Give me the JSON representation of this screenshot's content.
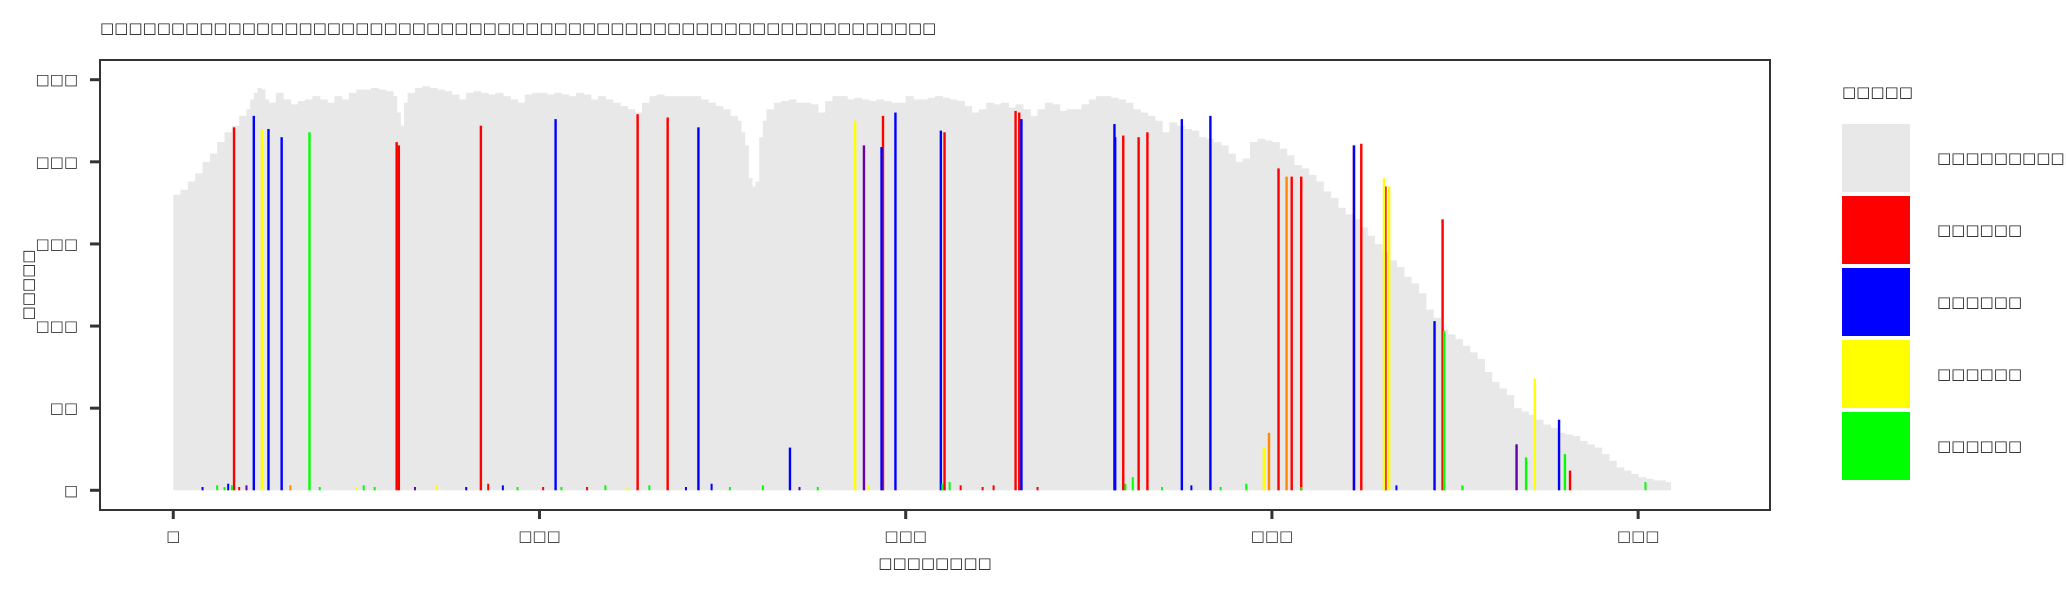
{
  "chart_data": {
    "type": "bar",
    "title": "□□□□□□□□□□□□□□□□□□□□□□□□□□□□□□□□□□□□□□□□□□□□□□□□□□□□□□□□□□□",
    "xlabel": "□□□□□□□□",
    "ylabel": "□□□□□",
    "x_ticks": [
      {
        "value": 0,
        "label": "□"
      },
      {
        "value": 500,
        "label": "□□□"
      },
      {
        "value": 1000,
        "label": "□□□"
      },
      {
        "value": 1500,
        "label": "□□□"
      },
      {
        "value": 2000,
        "label": "□□□"
      }
    ],
    "y_ticks": [
      {
        "value": 0,
        "label": "□"
      },
      {
        "value": 50,
        "label": "□□"
      },
      {
        "value": 100,
        "label": "□□□"
      },
      {
        "value": 150,
        "label": "□□□"
      },
      {
        "value": 200,
        "label": "□□□"
      },
      {
        "value": 250,
        "label": "□□□"
      }
    ],
    "xlim": [
      -100,
      2180
    ],
    "ylim": [
      -12,
      262
    ],
    "grid": false,
    "legend_title": "□□□□□",
    "legend_position": "right",
    "legend": [
      {
        "label": "□□□□□□□□□□",
        "color": "#e8e8e8"
      },
      {
        "label": "□□□□□□",
        "color": "#ff0000"
      },
      {
        "label": "□□□□□□",
        "color": "#0000ff"
      },
      {
        "label": "□□□□□□",
        "color": "#ffff00"
      },
      {
        "label": "□□□□□□",
        "color": "#00ff00"
      }
    ],
    "background_series": {
      "color": "#e8e8e8",
      "points": [
        [
          0,
          180
        ],
        [
          10,
          183
        ],
        [
          20,
          188
        ],
        [
          30,
          193
        ],
        [
          40,
          200
        ],
        [
          50,
          205
        ],
        [
          60,
          212
        ],
        [
          70,
          218
        ],
        [
          80,
          222
        ],
        [
          90,
          228
        ],
        [
          100,
          232
        ],
        [
          105,
          238
        ],
        [
          110,
          242
        ],
        [
          115,
          245
        ],
        [
          120,
          244
        ],
        [
          125,
          238
        ],
        [
          130,
          236
        ],
        [
          140,
          242
        ],
        [
          150,
          238
        ],
        [
          160,
          235
        ],
        [
          170,
          237
        ],
        [
          180,
          238
        ],
        [
          190,
          240
        ],
        [
          200,
          238
        ],
        [
          210,
          236
        ],
        [
          220,
          240
        ],
        [
          230,
          238
        ],
        [
          240,
          242
        ],
        [
          250,
          244
        ],
        [
          260,
          244
        ],
        [
          270,
          245
        ],
        [
          280,
          244
        ],
        [
          290,
          243
        ],
        [
          300,
          240
        ],
        [
          305,
          230
        ],
        [
          310,
          222
        ],
        [
          315,
          236
        ],
        [
          320,
          242
        ],
        [
          330,
          245
        ],
        [
          340,
          246
        ],
        [
          350,
          245
        ],
        [
          360,
          244
        ],
        [
          370,
          243
        ],
        [
          380,
          241
        ],
        [
          390,
          238
        ],
        [
          400,
          242
        ],
        [
          410,
          243
        ],
        [
          420,
          242
        ],
        [
          430,
          241
        ],
        [
          440,
          242
        ],
        [
          450,
          240
        ],
        [
          460,
          238
        ],
        [
          470,
          236
        ],
        [
          480,
          241
        ],
        [
          490,
          242
        ],
        [
          500,
          242
        ],
        [
          510,
          241
        ],
        [
          520,
          242
        ],
        [
          530,
          241
        ],
        [
          540,
          240
        ],
        [
          550,
          242
        ],
        [
          560,
          241
        ],
        [
          570,
          238
        ],
        [
          580,
          240
        ],
        [
          590,
          238
        ],
        [
          600,
          236
        ],
        [
          610,
          234
        ],
        [
          620,
          232
        ],
        [
          630,
          230
        ],
        [
          640,
          236
        ],
        [
          650,
          240
        ],
        [
          660,
          241
        ],
        [
          670,
          240
        ],
        [
          680,
          240
        ],
        [
          690,
          240
        ],
        [
          700,
          240
        ],
        [
          710,
          240
        ],
        [
          720,
          238
        ],
        [
          730,
          236
        ],
        [
          740,
          234
        ],
        [
          750,
          232
        ],
        [
          760,
          228
        ],
        [
          770,
          225
        ],
        [
          775,
          218
        ],
        [
          780,
          210
        ],
        [
          785,
          190
        ],
        [
          790,
          185
        ],
        [
          795,
          188
        ],
        [
          800,
          215
        ],
        [
          805,
          225
        ],
        [
          810,
          232
        ],
        [
          820,
          236
        ],
        [
          830,
          237
        ],
        [
          840,
          238
        ],
        [
          850,
          236
        ],
        [
          860,
          236
        ],
        [
          870,
          235
        ],
        [
          880,
          230
        ],
        [
          890,
          237
        ],
        [
          900,
          240
        ],
        [
          910,
          240
        ],
        [
          920,
          238
        ],
        [
          930,
          239
        ],
        [
          940,
          238
        ],
        [
          950,
          237
        ],
        [
          960,
          238
        ],
        [
          970,
          237
        ],
        [
          980,
          236
        ],
        [
          990,
          236
        ],
        [
          1000,
          240
        ],
        [
          1010,
          238
        ],
        [
          1020,
          238
        ],
        [
          1030,
          239
        ],
        [
          1040,
          240
        ],
        [
          1050,
          239
        ],
        [
          1060,
          238
        ],
        [
          1070,
          237
        ],
        [
          1080,
          234
        ],
        [
          1090,
          230
        ],
        [
          1100,
          232
        ],
        [
          1110,
          236
        ],
        [
          1120,
          235
        ],
        [
          1130,
          236
        ],
        [
          1140,
          233
        ],
        [
          1150,
          235
        ],
        [
          1160,
          232
        ],
        [
          1170,
          228
        ],
        [
          1180,
          232
        ],
        [
          1190,
          236
        ],
        [
          1200,
          235
        ],
        [
          1210,
          231
        ],
        [
          1220,
          232
        ],
        [
          1230,
          232
        ],
        [
          1240,
          235
        ],
        [
          1250,
          238
        ],
        [
          1260,
          240
        ],
        [
          1270,
          240
        ],
        [
          1280,
          239
        ],
        [
          1290,
          238
        ],
        [
          1300,
          236
        ],
        [
          1310,
          232
        ],
        [
          1320,
          230
        ],
        [
          1330,
          228
        ],
        [
          1340,
          225
        ],
        [
          1350,
          218
        ],
        [
          1360,
          224
        ],
        [
          1370,
          222
        ],
        [
          1380,
          220
        ],
        [
          1390,
          219
        ],
        [
          1400,
          215
        ],
        [
          1410,
          214
        ],
        [
          1420,
          212
        ],
        [
          1430,
          210
        ],
        [
          1440,
          205
        ],
        [
          1450,
          200
        ],
        [
          1460,
          202
        ],
        [
          1470,
          212
        ],
        [
          1480,
          214
        ],
        [
          1490,
          213
        ],
        [
          1500,
          212
        ],
        [
          1510,
          208
        ],
        [
          1520,
          204
        ],
        [
          1530,
          198
        ],
        [
          1540,
          196
        ],
        [
          1550,
          192
        ],
        [
          1560,
          188
        ],
        [
          1570,
          182
        ],
        [
          1580,
          178
        ],
        [
          1590,
          172
        ],
        [
          1600,
          168
        ],
        [
          1610,
          165
        ],
        [
          1620,
          160
        ],
        [
          1630,
          155
        ],
        [
          1640,
          150
        ],
        [
          1650,
          145
        ],
        [
          1660,
          140
        ],
        [
          1670,
          136
        ],
        [
          1680,
          130
        ],
        [
          1690,
          126
        ],
        [
          1700,
          120
        ],
        [
          1710,
          110
        ],
        [
          1720,
          105
        ],
        [
          1730,
          98
        ],
        [
          1740,
          95
        ],
        [
          1750,
          92
        ],
        [
          1760,
          88
        ],
        [
          1770,
          84
        ],
        [
          1780,
          80
        ],
        [
          1790,
          72
        ],
        [
          1800,
          66
        ],
        [
          1810,
          62
        ],
        [
          1820,
          58
        ],
        [
          1830,
          50
        ],
        [
          1840,
          48
        ],
        [
          1850,
          46
        ],
        [
          1860,
          43
        ],
        [
          1870,
          40
        ],
        [
          1880,
          38
        ],
        [
          1890,
          35
        ],
        [
          1900,
          34
        ],
        [
          1910,
          33
        ],
        [
          1920,
          30
        ],
        [
          1930,
          28
        ],
        [
          1940,
          26
        ],
        [
          1950,
          22
        ],
        [
          1960,
          18
        ],
        [
          1970,
          14
        ],
        [
          1980,
          12
        ],
        [
          1990,
          10
        ],
        [
          2000,
          8
        ],
        [
          2010,
          7
        ],
        [
          2020,
          6
        ],
        [
          2030,
          6
        ],
        [
          2037,
          5
        ]
      ]
    },
    "highlight_series": [
      {
        "color": "#ff0000",
        "points": [
          [
            83,
            221
          ],
          [
            305,
            212
          ],
          [
            308,
            210
          ],
          [
            420,
            222
          ],
          [
            634,
            229
          ],
          [
            675,
            227
          ],
          [
            969,
            228
          ],
          [
            1053,
            218
          ],
          [
            1150,
            231
          ],
          [
            1155,
            230
          ],
          [
            1297,
            216
          ],
          [
            1318,
            215
          ],
          [
            1330,
            218
          ],
          [
            1509,
            196
          ],
          [
            1527,
            191
          ],
          [
            1540,
            191
          ],
          [
            1612,
            210
          ],
          [
            1622,
            211
          ],
          [
            1655,
            185
          ],
          [
            1733,
            165
          ],
          [
            1907,
            12
          ]
        ]
      },
      {
        "color": "#0000ff",
        "points": [
          [
            110,
            228
          ],
          [
            130,
            220
          ],
          [
            148,
            215
          ],
          [
            522,
            226
          ],
          [
            717,
            221
          ],
          [
            842,
            26
          ],
          [
            967,
            209
          ],
          [
            986,
            230
          ],
          [
            1048,
            219
          ],
          [
            1158,
            226
          ],
          [
            1285,
            223
          ],
          [
            1286,
            215
          ],
          [
            1377,
            226
          ],
          [
            1416,
            228
          ],
          [
            1612,
            210
          ],
          [
            1722,
            103
          ],
          [
            1892,
            43
          ]
        ]
      },
      {
        "color": "#ffff00",
        "points": [
          [
            121,
            220
          ],
          [
            931,
            225
          ],
          [
            1489,
            26
          ],
          [
            1653,
            190
          ],
          [
            1660,
            185
          ],
          [
            1859,
            68
          ]
        ]
      },
      {
        "color": "#00ff00",
        "points": [
          [
            186,
            218
          ],
          [
            1735,
            97
          ],
          [
            1847,
            20
          ],
          [
            1900,
            22
          ]
        ]
      },
      {
        "color": "#ff8800",
        "points": [
          [
            1520,
            191
          ],
          [
            1496,
            35
          ]
        ]
      },
      {
        "color": "#6600aa",
        "points": [
          [
            943,
            210
          ],
          [
            1834,
            28
          ]
        ]
      }
    ],
    "small_bars": [
      [
        40,
        2,
        "#0000ff"
      ],
      [
        60,
        3,
        "#00ff00"
      ],
      [
        70,
        2,
        "#00ff00"
      ],
      [
        75,
        4,
        "#0000ff"
      ],
      [
        80,
        3,
        "#00ff00"
      ],
      [
        90,
        2,
        "#ff0000"
      ],
      [
        100,
        3,
        "#6600aa"
      ],
      [
        160,
        3,
        "#ff8800"
      ],
      [
        200,
        2,
        "#00ff00"
      ],
      [
        250,
        2,
        "#ffff00"
      ],
      [
        260,
        3,
        "#00ff00"
      ],
      [
        275,
        2,
        "#00ff00"
      ],
      [
        330,
        2,
        "#6600aa"
      ],
      [
        360,
        3,
        "#ffff00"
      ],
      [
        400,
        2,
        "#0000ff"
      ],
      [
        430,
        4,
        "#ff0000"
      ],
      [
        450,
        3,
        "#0000ff"
      ],
      [
        470,
        2,
        "#00ff00"
      ],
      [
        505,
        2,
        "#ff0000"
      ],
      [
        530,
        2,
        "#00ff00"
      ],
      [
        565,
        2,
        "#ff0000"
      ],
      [
        590,
        3,
        "#00ff00"
      ],
      [
        620,
        2,
        "#ffff00"
      ],
      [
        650,
        3,
        "#00ff00"
      ],
      [
        700,
        2,
        "#0000ff"
      ],
      [
        735,
        4,
        "#0000ff"
      ],
      [
        760,
        2,
        "#00ff00"
      ],
      [
        805,
        3,
        "#00ff00"
      ],
      [
        855,
        2,
        "#6600aa"
      ],
      [
        880,
        2,
        "#00ff00"
      ],
      [
        950,
        3,
        "#ffff00"
      ],
      [
        1050,
        4,
        "#00ff00"
      ],
      [
        1060,
        5,
        "#00ff00"
      ],
      [
        1075,
        3,
        "#ff0000"
      ],
      [
        1105,
        2,
        "#ff0000"
      ],
      [
        1120,
        3,
        "#ff0000"
      ],
      [
        1180,
        2,
        "#ff0000"
      ],
      [
        1300,
        4,
        "#00ff00"
      ],
      [
        1310,
        8,
        "#00ff00"
      ],
      [
        1350,
        2,
        "#00ff00"
      ],
      [
        1390,
        3,
        "#0000ff"
      ],
      [
        1430,
        2,
        "#00ff00"
      ],
      [
        1465,
        4,
        "#00ff00"
      ],
      [
        1540,
        2,
        "#00ff00"
      ],
      [
        1670,
        3,
        "#0000ff"
      ],
      [
        1760,
        3,
        "#00ff00"
      ],
      [
        2010,
        5,
        "#00ff00"
      ]
    ]
  }
}
